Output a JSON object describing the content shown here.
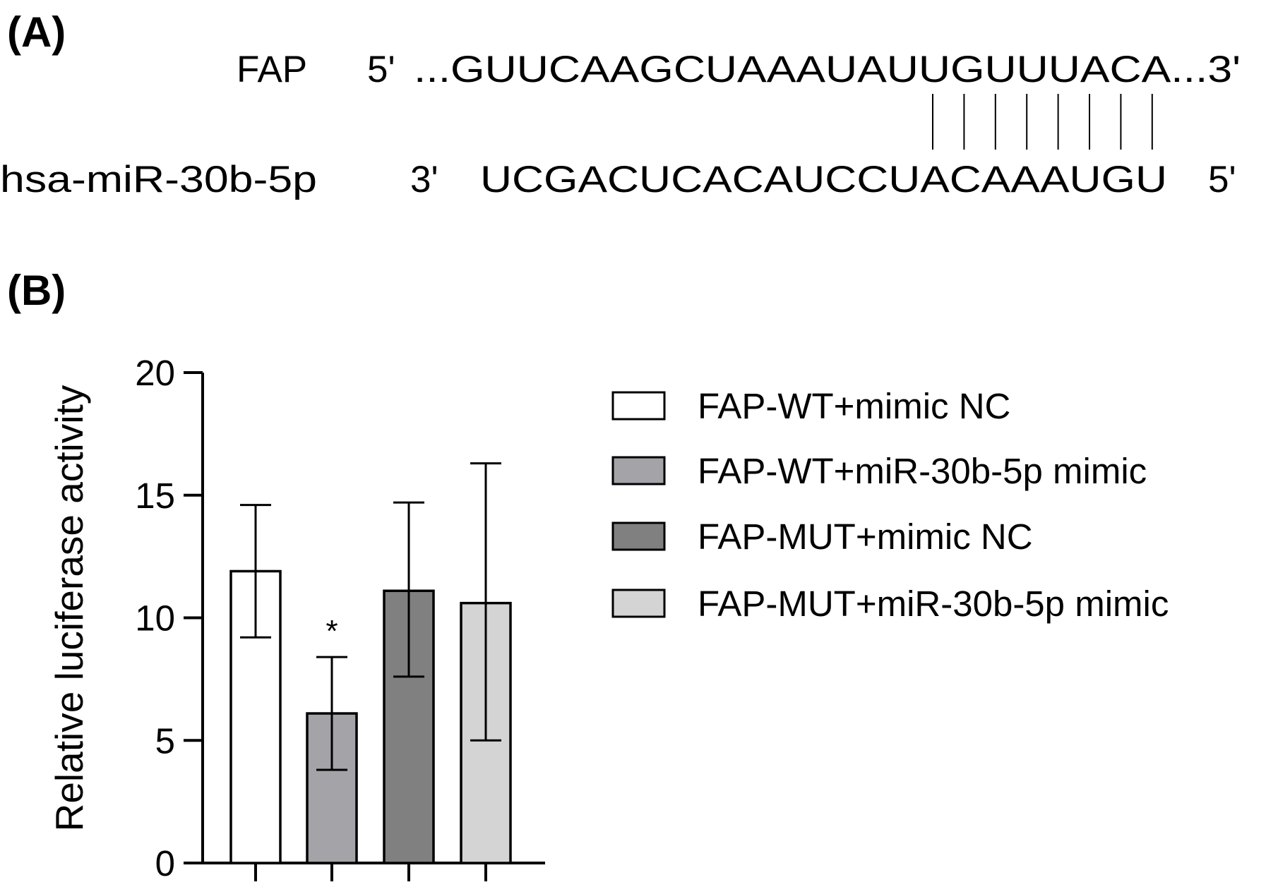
{
  "panel_a": {
    "label": "(A)",
    "target_name": "FAP",
    "target_5prime": "5'",
    "target_sequence": "...GUUCAAGCUAAAUAUUGUUUACA...3'",
    "mirna_name": "hsa-miR-30b-5p",
    "mirna_3prime": "3'",
    "mirna_sequence": "UCGACUCACAUCCUACAAAUGU",
    "mirna_5prime": "5'",
    "base_pairs": 8
  },
  "panel_b": {
    "label": "(B)"
  },
  "chart_data": {
    "type": "bar",
    "title": "",
    "xlabel": "",
    "ylabel": "Relative luciferase activity",
    "ylim": [
      0,
      20
    ],
    "yticks": [
      "0",
      "5",
      "10",
      "15",
      "20"
    ],
    "grid": false,
    "legend_position": "right",
    "categories": [
      "FAP-WT+mimic NC",
      "FAP-WT+miR-30b-5p mimic",
      "FAP-MUT+mimic NC",
      "FAP-MUT+miR-30b-5p mimic"
    ],
    "values": [
      11.9,
      6.1,
      11.1,
      10.6
    ],
    "error_upper": [
      14.6,
      8.4,
      14.7,
      16.3
    ],
    "error_lower": [
      9.2,
      3.8,
      7.6,
      5.0
    ],
    "colors": [
      "#ffffff",
      "#a3a3a8",
      "#808080",
      "#d4d4d4"
    ],
    "annotations": [
      "",
      "*",
      "",
      ""
    ]
  }
}
